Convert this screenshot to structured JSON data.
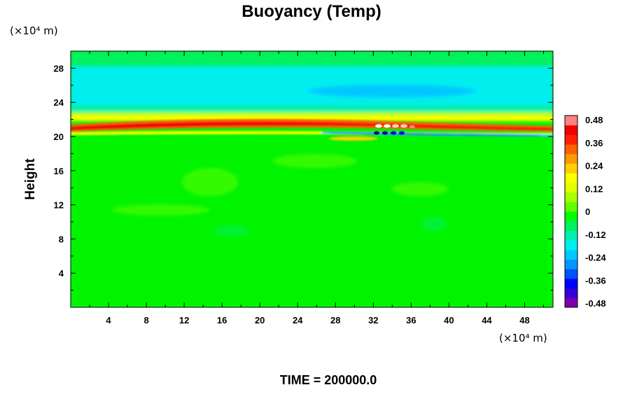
{
  "chart_data": {
    "type": "heatmap",
    "title": "Buoyancy (Temp)",
    "ylabel": "Height",
    "xlabel": "",
    "y_unit": "(×10⁴ m)",
    "x_unit": "(×10⁴ m)",
    "footer": "TIME = 200000.0",
    "xlim": [
      0,
      51
    ],
    "ylim": [
      0,
      30
    ],
    "x_ticks": [
      4,
      8,
      12,
      16,
      20,
      24,
      28,
      32,
      36,
      40,
      44,
      48
    ],
    "y_ticks": [
      4,
      8,
      12,
      16,
      20,
      24,
      28
    ],
    "x_tick_labels": [
      "4",
      "8",
      "12",
      "16",
      "20",
      "24",
      "28",
      "32",
      "36",
      "40",
      "44",
      "48"
    ],
    "y_tick_labels": [
      "4",
      "8",
      "12",
      "16",
      "20",
      "24",
      "28"
    ],
    "colorbar": {
      "min": -0.48,
      "max": 0.48,
      "tick_labels": [
        "0.48",
        "0.36",
        "0.24",
        "0.12",
        "0",
        "-0.12",
        "-0.24",
        "-0.36",
        "-0.48"
      ],
      "colors": [
        "#7a00b0",
        "#3300d8",
        "#0000ff",
        "#0050ff",
        "#0098ff",
        "#00c8ff",
        "#00eeee",
        "#00f0b0",
        "#00f060",
        "#00ff00",
        "#60ff00",
        "#a8ff00",
        "#e0ff00",
        "#ffff00",
        "#ffd000",
        "#ff9900",
        "#ff6000",
        "#ff2000",
        "#f00000",
        "#ff8080"
      ]
    },
    "field_summary": [
      {
        "y_range": [
          0,
          19.5
        ],
        "value": 0.0
      },
      {
        "y_range": [
          19.5,
          20.0
        ],
        "value": 0.08
      },
      {
        "y_range": [
          20.0,
          20.5
        ],
        "value": -0.2
      },
      {
        "y_range": [
          20.5,
          21.5
        ],
        "value": 0.38
      },
      {
        "y_range": [
          21.5,
          22.5
        ],
        "value": 0.2
      },
      {
        "y_range": [
          22.5,
          23.0
        ],
        "value": 0.06
      },
      {
        "y_range": [
          23.0,
          24.0
        ],
        "value": -0.08
      },
      {
        "y_range": [
          24.0,
          27.0
        ],
        "value": -0.18
      },
      {
        "y_range": [
          27.0,
          30.0
        ],
        "value": -0.06
      }
    ]
  }
}
